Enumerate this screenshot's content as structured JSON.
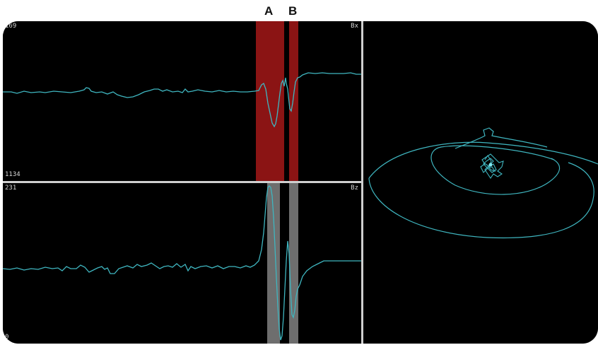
{
  "markers": {
    "a": "A",
    "b": "B"
  },
  "panels": {
    "bx": {
      "top_value": "169",
      "bottom_value": "1134",
      "channel": "Bx"
    },
    "bz": {
      "top_value": "231",
      "bottom_value": "0",
      "channel": "Bz"
    }
  },
  "colors": {
    "trace": "#3fb6c0",
    "highlight_bx": "#8b1414",
    "highlight_bz": "#6e6e6e",
    "background": "#000000",
    "divider": "#cfcfcf"
  }
}
